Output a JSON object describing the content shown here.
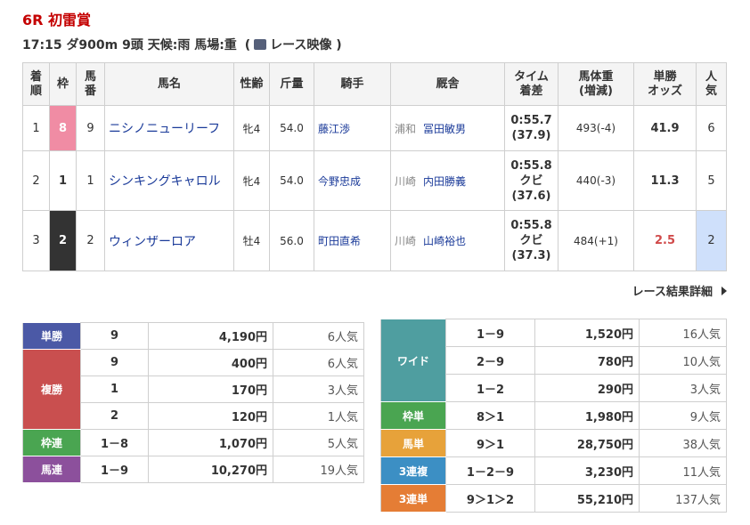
{
  "header": {
    "title": "6R 初雷賞",
    "info": "17:15 ダ900m 9頭 天候:雨 馬場:重",
    "video_open": "(",
    "video": "レース映像",
    "video_close": ")"
  },
  "results": {
    "columns": [
      [
        "着",
        "順"
      ],
      [
        "枠"
      ],
      [
        "馬",
        "番"
      ],
      [
        "馬名"
      ],
      [
        "性齢"
      ],
      [
        "斤量"
      ],
      [
        "騎手"
      ],
      [
        "厩舎"
      ],
      [
        "タイム",
        "着差"
      ],
      [
        "馬体重",
        "(増減)"
      ],
      [
        "単勝",
        "オッズ"
      ],
      [
        "人",
        "気"
      ]
    ],
    "rows": [
      {
        "rank": "1",
        "frame": "8",
        "number": "9",
        "horse": "ニシノニューリーフ",
        "sex_age": "牝4",
        "weight": "54.0",
        "jockey": "藤江渉",
        "trainer_area": "浦和",
        "trainer": "冨田敏男",
        "time": [
          "0:55.7",
          "(37.9)"
        ],
        "body_weight": "493(-4)",
        "odds": "41.9",
        "popularity": "6"
      },
      {
        "rank": "2",
        "frame": "1",
        "number": "1",
        "horse": "シンキングキャロル",
        "sex_age": "牝4",
        "weight": "54.0",
        "jockey": "今野忠成",
        "trainer_area": "川崎",
        "trainer": "内田勝義",
        "time": [
          "0:55.8",
          "クビ",
          "(37.6)"
        ],
        "body_weight": "440(-3)",
        "odds": "11.3",
        "popularity": "5"
      },
      {
        "rank": "3",
        "frame": "2",
        "number": "2",
        "horse": "ウィンザーロア",
        "sex_age": "牡4",
        "weight": "56.0",
        "jockey": "町田直希",
        "trainer_area": "川崎",
        "trainer": "山崎裕也",
        "time": [
          "0:55.8",
          "クビ",
          "(37.3)"
        ],
        "body_weight": "484(+1)",
        "odds": "2.5",
        "popularity": "2"
      }
    ]
  },
  "detail_link": "レース結果詳細",
  "payouts_left": [
    {
      "label": "単勝",
      "color": "#4b59a6",
      "entries": [
        {
          "combo": "9",
          "amount": "4,190円",
          "popularity": "6人気"
        }
      ]
    },
    {
      "label": "複勝",
      "color": "#c94f4f",
      "entries": [
        {
          "combo": "9",
          "amount": "400円",
          "popularity": "6人気"
        },
        {
          "combo": "1",
          "amount": "170円",
          "popularity": "3人気"
        },
        {
          "combo": "2",
          "amount": "120円",
          "popularity": "1人気"
        }
      ]
    },
    {
      "label": "枠連",
      "color": "#4aa551",
      "entries": [
        {
          "combo": "1－8",
          "amount": "1,070円",
          "popularity": "5人気"
        }
      ]
    },
    {
      "label": "馬連",
      "color": "#8c509c",
      "entries": [
        {
          "combo": "1－9",
          "amount": "10,270円",
          "popularity": "19人気"
        }
      ]
    }
  ],
  "payouts_right": [
    {
      "label": "ワイド",
      "color": "#4f9ea0",
      "entries": [
        {
          "combo": "1－9",
          "amount": "1,520円",
          "popularity": "16人気"
        },
        {
          "combo": "2－9",
          "amount": "780円",
          "popularity": "10人気"
        },
        {
          "combo": "1－2",
          "amount": "290円",
          "popularity": "3人気"
        }
      ]
    },
    {
      "label": "枠単",
      "color": "#4aa551",
      "entries": [
        {
          "combo": "8＞1",
          "amount": "1,980円",
          "popularity": "9人気"
        }
      ]
    },
    {
      "label": "馬単",
      "color": "#e7a23a",
      "entries": [
        {
          "combo": "9＞1",
          "amount": "28,750円",
          "popularity": "38人気"
        }
      ]
    },
    {
      "label": "3連複",
      "color": "#3c8fc4",
      "entries": [
        {
          "combo": "1－2－9",
          "amount": "3,230円",
          "popularity": "11人気"
        }
      ]
    },
    {
      "label": "3連単",
      "color": "#e57d35",
      "entries": [
        {
          "combo": "9＞1＞2",
          "amount": "55,210円",
          "popularity": "137人気"
        }
      ]
    }
  ]
}
